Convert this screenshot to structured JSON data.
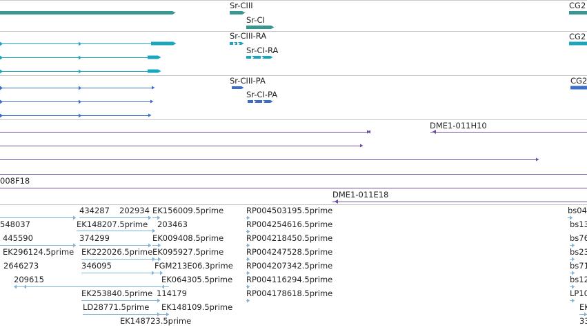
{
  "tracks": {
    "gene": {
      "color": "#3a9690",
      "features": [
        {
          "label": "Sr-CIII"
        },
        {
          "label": "Sr-CI"
        },
        {
          "label": "CG2"
        }
      ]
    },
    "transcript_ra": {
      "color": "#1aa6c0",
      "features": [
        {
          "label": "Sr-CIII-RA"
        },
        {
          "label": "Sr-CI-RA"
        },
        {
          "label": "CG2"
        }
      ]
    },
    "protein_pa": {
      "color": "#3a6ec8",
      "features": [
        {
          "label": "Sr-CIII-PA"
        },
        {
          "label": "Sr-CI-PA"
        },
        {
          "label": "CG2"
        }
      ]
    },
    "clone": {
      "color": "#6a4fa3",
      "features": [
        {
          "label": "DME1-011H10"
        },
        {
          "label": "008F18"
        },
        {
          "label": "DME1-011E18"
        }
      ]
    },
    "est": {
      "color": "#7fb3d8",
      "features": [
        {
          "label": "434287"
        },
        {
          "label": "202934"
        },
        {
          "label": "EK156009.5prime"
        },
        {
          "label": "RP004503195.5prime"
        },
        {
          "label": "bs04"
        },
        {
          "label": "548037"
        },
        {
          "label": "EK148207.5prime"
        },
        {
          "label": "203463"
        },
        {
          "label": "RP004254616.5prime"
        },
        {
          "label": "bs13"
        },
        {
          "label": "445590"
        },
        {
          "label": "374299"
        },
        {
          "label": "EK009408.5prime"
        },
        {
          "label": "RP004218450.5prime"
        },
        {
          "label": "bs76"
        },
        {
          "label": "EK296124.5prime"
        },
        {
          "label": "EK222026.5prime"
        },
        {
          "label": "EK095927.5prime"
        },
        {
          "label": "RP004247528.5prime"
        },
        {
          "label": "bs23"
        },
        {
          "label": "2646273"
        },
        {
          "label": "346095"
        },
        {
          "label": "FGM213E06.3prime"
        },
        {
          "label": "RP004207342.5prime"
        },
        {
          "label": "bs71"
        },
        {
          "label": "209615"
        },
        {
          "label": "EK064305.5prime"
        },
        {
          "label": "RP004116294.5prime"
        },
        {
          "label": "bs12"
        },
        {
          "label": "EK253840.5prime"
        },
        {
          "label": "114179"
        },
        {
          "label": "RP004178618.5prime"
        },
        {
          "label": "LP10"
        },
        {
          "label": "LD28771.5prime"
        },
        {
          "label": "EK148109.5prime"
        },
        {
          "label": "EK"
        },
        {
          "label": "EK148723.5prime"
        },
        {
          "label": "33"
        }
      ]
    }
  }
}
